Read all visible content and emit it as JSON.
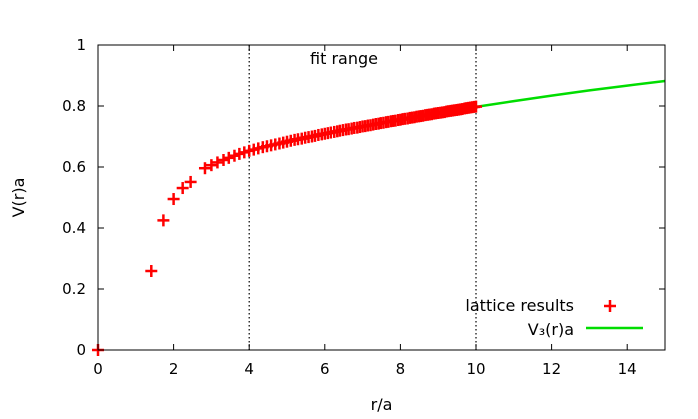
{
  "chart_data": {
    "type": "scatter",
    "xlabel": "r/a",
    "ylabel": "V(r)a",
    "xlim": [
      0,
      15
    ],
    "ylim": [
      0,
      1
    ],
    "x_ticks": [
      "0",
      "2",
      "4",
      "6",
      "8",
      "10",
      "12",
      "14"
    ],
    "y_ticks": [
      "0",
      "0.2",
      "0.4",
      "0.6",
      "0.8",
      "1"
    ],
    "annotation": "fit range",
    "fit_range": [
      4,
      10
    ],
    "grid": false,
    "legend_position": "bottom-right",
    "series": [
      {
        "name": "lattice results",
        "marker": "plus",
        "color": "#ff0000",
        "points": [
          [
            0,
            0
          ],
          [
            1.41,
            0.259
          ],
          [
            1.73,
            0.425
          ],
          [
            2.0,
            0.495
          ],
          [
            2.24,
            0.531
          ],
          [
            2.45,
            0.551
          ],
          [
            2.83,
            0.596
          ],
          [
            3.0,
            0.606
          ],
          [
            3.16,
            0.615
          ],
          [
            3.32,
            0.623
          ],
          [
            3.46,
            0.63
          ],
          [
            3.61,
            0.637
          ],
          [
            3.74,
            0.643
          ],
          [
            3.87,
            0.648
          ],
          [
            4.0,
            0.653
          ],
          [
            4.12,
            0.657
          ],
          [
            4.24,
            0.661
          ],
          [
            4.36,
            0.665
          ],
          [
            4.47,
            0.668
          ],
          [
            4.58,
            0.671
          ],
          [
            4.69,
            0.674
          ],
          [
            4.8,
            0.677
          ],
          [
            4.9,
            0.68
          ],
          [
            5.0,
            0.683
          ],
          [
            5.1,
            0.686
          ],
          [
            5.2,
            0.689
          ],
          [
            5.29,
            0.691
          ],
          [
            5.39,
            0.693
          ],
          [
            5.48,
            0.696
          ],
          [
            5.57,
            0.698
          ],
          [
            5.66,
            0.7
          ],
          [
            5.74,
            0.702
          ],
          [
            5.83,
            0.705
          ],
          [
            5.92,
            0.707
          ],
          [
            6.0,
            0.709
          ],
          [
            6.08,
            0.711
          ],
          [
            6.16,
            0.713
          ],
          [
            6.25,
            0.715
          ],
          [
            6.33,
            0.717
          ],
          [
            6.4,
            0.719
          ],
          [
            6.48,
            0.721
          ],
          [
            6.56,
            0.723
          ],
          [
            6.63,
            0.724
          ],
          [
            6.71,
            0.726
          ],
          [
            6.78,
            0.728
          ],
          [
            6.86,
            0.729
          ],
          [
            6.93,
            0.731
          ],
          [
            7.0,
            0.733
          ],
          [
            7.07,
            0.734
          ],
          [
            7.14,
            0.736
          ],
          [
            7.21,
            0.737
          ],
          [
            7.28,
            0.739
          ],
          [
            7.35,
            0.741
          ],
          [
            7.42,
            0.742
          ],
          [
            7.48,
            0.744
          ],
          [
            7.55,
            0.745
          ],
          [
            7.62,
            0.747
          ],
          [
            7.68,
            0.748
          ],
          [
            7.75,
            0.75
          ],
          [
            7.81,
            0.751
          ],
          [
            7.87,
            0.752
          ],
          [
            7.94,
            0.754
          ],
          [
            8.0,
            0.755
          ],
          [
            8.06,
            0.757
          ],
          [
            8.12,
            0.758
          ],
          [
            8.19,
            0.759
          ],
          [
            8.25,
            0.761
          ],
          [
            8.31,
            0.762
          ],
          [
            8.37,
            0.763
          ],
          [
            8.43,
            0.765
          ],
          [
            8.49,
            0.766
          ],
          [
            8.54,
            0.767
          ],
          [
            8.6,
            0.768
          ],
          [
            8.66,
            0.77
          ],
          [
            8.72,
            0.771
          ],
          [
            8.77,
            0.772
          ],
          [
            8.83,
            0.773
          ],
          [
            8.89,
            0.775
          ],
          [
            8.94,
            0.776
          ],
          [
            9.0,
            0.777
          ],
          [
            9.06,
            0.778
          ],
          [
            9.11,
            0.779
          ],
          [
            9.17,
            0.78
          ],
          [
            9.22,
            0.782
          ],
          [
            9.27,
            0.783
          ],
          [
            9.33,
            0.784
          ],
          [
            9.38,
            0.785
          ],
          [
            9.43,
            0.786
          ],
          [
            9.49,
            0.787
          ],
          [
            9.54,
            0.788
          ],
          [
            9.59,
            0.789
          ],
          [
            9.64,
            0.79
          ],
          [
            9.7,
            0.792
          ],
          [
            9.75,
            0.793
          ],
          [
            9.8,
            0.794
          ],
          [
            9.85,
            0.795
          ],
          [
            9.9,
            0.796
          ],
          [
            9.95,
            0.797
          ],
          [
            10.0,
            0.798
          ]
        ]
      },
      {
        "name": "V₃(r)a",
        "type": "line",
        "color": "#00dd00",
        "points": [
          [
            4.0,
            0.653
          ],
          [
            5.0,
            0.684
          ],
          [
            6.0,
            0.71
          ],
          [
            7.0,
            0.734
          ],
          [
            8.0,
            0.756
          ],
          [
            9.0,
            0.777
          ],
          [
            10.0,
            0.797
          ],
          [
            11.0,
            0.816
          ],
          [
            12.0,
            0.834
          ],
          [
            13.0,
            0.851
          ],
          [
            14.0,
            0.867
          ],
          [
            15.0,
            0.882
          ]
        ]
      }
    ]
  }
}
